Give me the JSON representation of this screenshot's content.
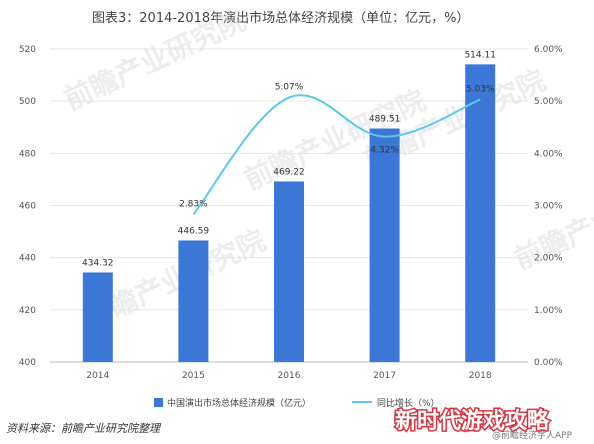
{
  "title": "图表3：2014-2018年演出市场总体经济规模（单位：亿元，%）",
  "source": "资料来源：前瞻产业研究院整理",
  "watermark": "前瞻产业研究院",
  "brand_overlay": "新时代游戏攻略",
  "corner_text": "@前瞻经济学人APP",
  "colors": {
    "bar": "#3a77d6",
    "line": "#5bc8ea"
  },
  "chart_data": {
    "type": "bar",
    "title": "图表3：2014-2018年演出市场总体经济规模（单位：亿元，%）",
    "categories": [
      "2014",
      "2015",
      "2016",
      "2017",
      "2018"
    ],
    "ylim": [
      400,
      520
    ],
    "yticks": [
      "400",
      "420",
      "440",
      "460",
      "480",
      "500",
      "520"
    ],
    "y2lim": [
      0,
      6
    ],
    "y2ticks": [
      "0.00%",
      "1.00%",
      "2.00%",
      "3.00%",
      "4.00%",
      "5.00%",
      "6.00%"
    ],
    "legend_position": "bottom",
    "series": [
      {
        "name": "中国演出市场总体经济规模（亿元）",
        "type": "bar",
        "axis": "left",
        "values": [
          434.32,
          446.59,
          469.22,
          489.51,
          514.11
        ],
        "labels": [
          "434.32",
          "446.59",
          "469.22",
          "489.51",
          "514.11"
        ]
      },
      {
        "name": "同比增长（%）",
        "type": "line",
        "axis": "right",
        "values": [
          null,
          2.83,
          5.07,
          4.32,
          5.03
        ],
        "labels": [
          "",
          "2.83%",
          "5.07%",
          "4.32%",
          "5.03%"
        ]
      }
    ]
  }
}
